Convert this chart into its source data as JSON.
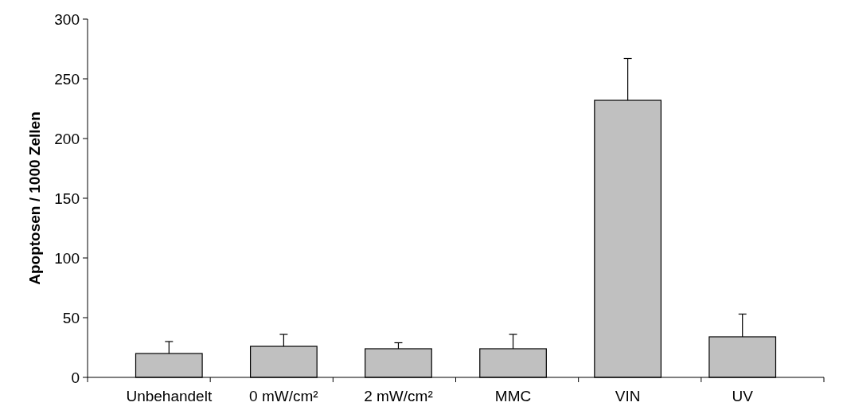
{
  "chart_data": {
    "type": "bar",
    "ylabel": "Apoptosen / 1000 Zellen",
    "categories": [
      "Unbehandelt",
      "0 mW/cm²",
      "2 mW/cm²",
      "MMC",
      "VIN",
      "UV"
    ],
    "values": [
      20,
      26,
      24,
      24,
      232,
      34
    ],
    "errors": [
      [
        20,
        30
      ],
      [
        26,
        36
      ],
      [
        24,
        29
      ],
      [
        24,
        36
      ],
      [
        232,
        267
      ],
      [
        34,
        53
      ]
    ],
    "color": "#c0c0c0",
    "ylim": [
      0,
      300
    ],
    "yticks": [
      0,
      50,
      100,
      150,
      200,
      250,
      300
    ],
    "grid": false
  }
}
